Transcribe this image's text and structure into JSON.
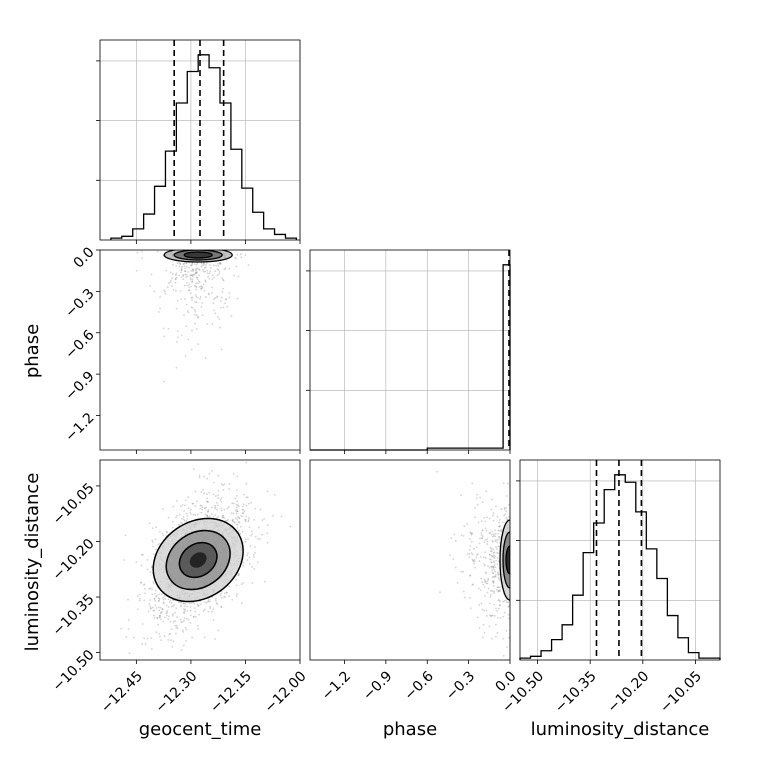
{
  "chart_data": [
    {
      "type": "histogram",
      "panel": "geocent_time-1d",
      "xlim": [
        -12.55,
        -12.0
      ],
      "ylim": [
        0,
        1
      ],
      "grid": true,
      "bins": [
        -12.52,
        -12.49,
        -12.46,
        -12.43,
        -12.4,
        -12.37,
        -12.34,
        -12.31,
        -12.28,
        -12.25,
        -12.22,
        -12.19,
        -12.16,
        -12.13,
        -12.1,
        -12.07,
        -12.04,
        -12.01
      ],
      "values": [
        0.01,
        0.02,
        0.06,
        0.14,
        0.29,
        0.48,
        0.74,
        0.91,
        1.0,
        0.93,
        0.74,
        0.49,
        0.28,
        0.15,
        0.06,
        0.03,
        0.01
      ],
      "quantiles": [
        -12.346,
        -12.275,
        -12.21
      ]
    },
    {
      "type": "histogram",
      "panel": "phase-1d",
      "xlim": [
        -1.45,
        0.0
      ],
      "ylim": [
        0,
        1
      ],
      "grid": true,
      "bins": [
        -1.45,
        -1.4,
        -1.35,
        -1.3,
        -1.25,
        -1.2,
        -1.15,
        -1.1,
        -1.05,
        -1.0,
        -0.95,
        -0.9,
        -0.85,
        -0.8,
        -0.75,
        -0.7,
        -0.65,
        -0.6,
        -0.55,
        -0.5,
        -0.45,
        -0.4,
        -0.35,
        -0.3,
        -0.25,
        -0.2,
        -0.15,
        -0.1,
        -0.05,
        0.0
      ],
      "values": [
        0,
        0,
        0,
        0,
        0,
        0,
        0,
        0,
        0,
        0,
        0,
        0,
        0,
        0,
        0,
        0,
        0,
        0.01,
        0.01,
        0.01,
        0.01,
        0.01,
        0.01,
        0.01,
        0.01,
        0.01,
        0.01,
        0.01,
        1.0
      ],
      "quantiles": [
        0.0
      ]
    },
    {
      "type": "histogram",
      "panel": "luminosity_distance-1d",
      "xlim": [
        -10.55,
        -9.98
      ],
      "ylim": [
        0,
        1
      ],
      "grid": true,
      "bins": [
        -10.55,
        -10.52,
        -10.49,
        -10.46,
        -10.43,
        -10.4,
        -10.37,
        -10.34,
        -10.31,
        -10.28,
        -10.25,
        -10.22,
        -10.19,
        -10.16,
        -10.13,
        -10.1,
        -10.07,
        -10.04,
        -10.01,
        -9.98
      ],
      "values": [
        0.01,
        0.02,
        0.05,
        0.11,
        0.19,
        0.35,
        0.58,
        0.74,
        0.92,
        1.0,
        0.96,
        0.8,
        0.6,
        0.44,
        0.24,
        0.12,
        0.04,
        0.01,
        0.01
      ],
      "quantiles": [
        -10.332,
        -10.268,
        -10.204
      ]
    },
    {
      "type": "scatter",
      "panel": "phase-vs-geocent_time",
      "xlim": [
        -12.55,
        -12.0
      ],
      "ylim": [
        -1.45,
        0.0
      ],
      "grid": false,
      "x_center": -12.28,
      "x_spread": 0.05,
      "y_note": "samples concentrated near phase = 0 with tail to about -1.2",
      "contour_center": [
        -12.28,
        -0.02
      ]
    },
    {
      "type": "scatter",
      "panel": "luminosity_distance-vs-geocent_time",
      "xlim": [
        -12.55,
        -12.0
      ],
      "ylim": [
        -10.52,
        -9.98
      ],
      "grid": false,
      "center": [
        -12.28,
        -10.25
      ],
      "sigma": [
        0.055,
        0.065
      ],
      "correlation": 0.45
    },
    {
      "type": "scatter",
      "panel": "luminosity_distance-vs-phase",
      "xlim": [
        -1.45,
        0.0
      ],
      "ylim": [
        -10.52,
        -9.98
      ],
      "grid": false,
      "center": [
        -0.01,
        -10.25
      ],
      "contour_center": [
        -0.01,
        -10.25
      ]
    }
  ],
  "axes": {
    "geocent_time": {
      "label": "geocent_time",
      "ticks": [
        -12.45,
        -12.3,
        -12.15,
        -12.0
      ],
      "tick_labels": [
        "−12.45",
        "−12.30",
        "−12.15",
        "−12.00"
      ]
    },
    "phase": {
      "label": "phase",
      "ticks": [
        -1.2,
        -0.9,
        -0.6,
        -0.3,
        0.0
      ],
      "tick_labels": [
        "−1.2",
        "−0.9",
        "−0.6",
        "−0.3",
        "0.0"
      ]
    },
    "luminosity_distance": {
      "label": "luminosity_distance",
      "ticks": [
        -10.5,
        -10.35,
        -10.2,
        -10.05
      ],
      "tick_labels": [
        "−10.50",
        "−10.35",
        "−10.20",
        "−10.05"
      ]
    }
  },
  "colors": {
    "line": "#000000",
    "grid": "#b0b0b0",
    "points": "#808080"
  }
}
